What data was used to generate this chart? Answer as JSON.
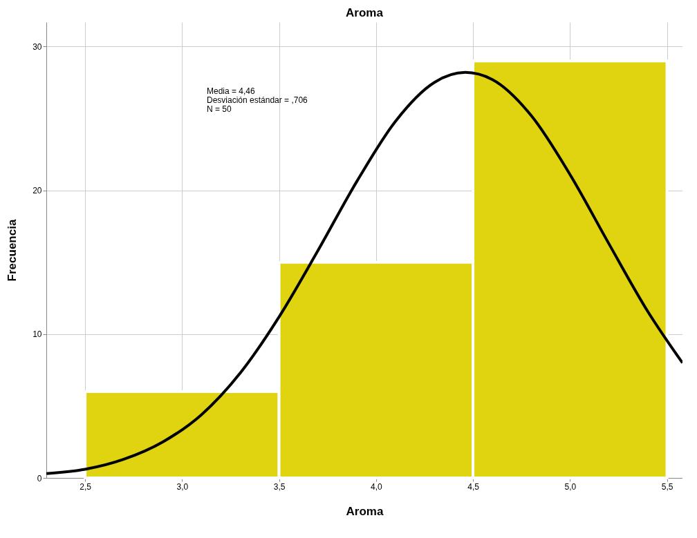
{
  "chart_data": {
    "type": "histogram",
    "title": "Aroma",
    "xlabel": "Aroma",
    "ylabel": "Frecuencia",
    "bins": [
      2.5,
      3.5,
      4.5,
      5.5
    ],
    "values": [
      6,
      15,
      29
    ],
    "color": "#e0d410",
    "series": [
      {
        "type": "line",
        "color": "#000000",
        "x": [
          2.3,
          2.5,
          2.7,
          2.9,
          3.1,
          3.3,
          3.5,
          3.7,
          3.9,
          4.1,
          4.3,
          4.46,
          4.6,
          4.8,
          5.0,
          5.2,
          5.4,
          5.58
        ],
        "values": [
          0.3,
          0.6,
          1.3,
          2.5,
          4.4,
          7.3,
          11.2,
          15.8,
          20.6,
          24.8,
          27.5,
          28.2,
          27.7,
          25.2,
          21.1,
          16.3,
          11.6,
          8.0
        ]
      }
    ],
    "xlim": [
      2.3,
      5.58
    ],
    "ylim": [
      0,
      31.7
    ],
    "xticks": [
      {
        "value": 2.5,
        "label": "2,5"
      },
      {
        "value": 3.0,
        "label": "3,0"
      },
      {
        "value": 3.5,
        "label": "3,5"
      },
      {
        "value": 4.0,
        "label": "4,0"
      },
      {
        "value": 4.5,
        "label": "4,5"
      },
      {
        "value": 5.0,
        "label": "5,0"
      },
      {
        "value": 5.5,
        "label": "5,5"
      }
    ],
    "yticks": [
      0,
      10,
      20,
      30
    ],
    "grid": true,
    "annotations": [
      "Media = 4,46",
      "Desviación estándar = ,706",
      "N = 50"
    ]
  }
}
